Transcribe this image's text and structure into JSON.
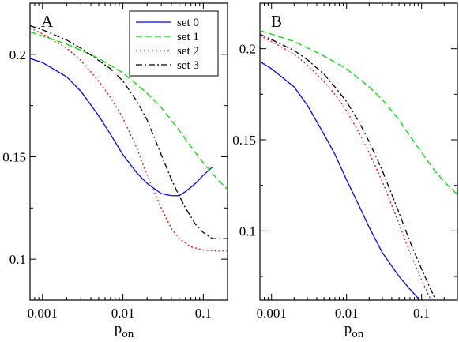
{
  "chart_data": [
    {
      "type": "line",
      "panel_label": "A",
      "xlabel": "p",
      "xlabel_sub": "on",
      "xscale": "log",
      "xlim": [
        0.0007,
        0.2
      ],
      "ylim": [
        0.08,
        0.225
      ],
      "xticks": [
        0.001,
        0.01,
        0.1
      ],
      "xtick_labels": [
        "0.001",
        "0.01",
        "0.1"
      ],
      "yticks": [
        0.1,
        0.15,
        0.2
      ],
      "ytick_labels": [
        "0.1",
        "0.15",
        "0.2"
      ],
      "legend_position": "top-right",
      "series": [
        {
          "name": "set 0",
          "color": "#0000ff",
          "dash": "solid",
          "x": [
            0.0007,
            0.001,
            0.002,
            0.003,
            0.005,
            0.007,
            0.01,
            0.015,
            0.02,
            0.03,
            0.04,
            0.05,
            0.06,
            0.08,
            0.1,
            0.13
          ],
          "y": [
            0.198,
            0.196,
            0.189,
            0.182,
            0.17,
            0.161,
            0.151,
            0.142,
            0.137,
            0.132,
            0.131,
            0.131,
            0.133,
            0.137,
            0.141,
            0.145
          ]
        },
        {
          "name": "set 1",
          "color": "#00dd00",
          "dash": "dashed",
          "x": [
            0.0007,
            0.001,
            0.002,
            0.003,
            0.005,
            0.01,
            0.02,
            0.03,
            0.05,
            0.07,
            0.1,
            0.15,
            0.2
          ],
          "y": [
            0.211,
            0.209,
            0.205,
            0.202,
            0.198,
            0.191,
            0.181,
            0.174,
            0.163,
            0.155,
            0.147,
            0.139,
            0.134
          ]
        },
        {
          "name": "set 2",
          "color": "#ff0000",
          "dash": "dotted",
          "x": [
            0.0007,
            0.001,
            0.002,
            0.003,
            0.005,
            0.007,
            0.01,
            0.015,
            0.02,
            0.03,
            0.04,
            0.05,
            0.07,
            0.1,
            0.15,
            0.2
          ],
          "y": [
            0.213,
            0.21,
            0.203,
            0.197,
            0.187,
            0.179,
            0.169,
            0.154,
            0.141,
            0.125,
            0.115,
            0.11,
            0.106,
            0.1045,
            0.104,
            0.104
          ]
        },
        {
          "name": "set 3",
          "color": "#000000",
          "dash": "dashdot",
          "x": [
            0.0007,
            0.001,
            0.002,
            0.003,
            0.005,
            0.007,
            0.01,
            0.015,
            0.02,
            0.03,
            0.04,
            0.05,
            0.06,
            0.08,
            0.1,
            0.13,
            0.2
          ],
          "y": [
            0.214,
            0.212,
            0.207,
            0.203,
            0.197,
            0.193,
            0.187,
            0.177,
            0.168,
            0.151,
            0.139,
            0.131,
            0.125,
            0.117,
            0.113,
            0.11,
            0.11
          ]
        }
      ]
    },
    {
      "type": "line",
      "panel_label": "B",
      "xlabel": "p",
      "xlabel_sub": "on",
      "xscale": "log",
      "xlim": [
        0.0007,
        0.3
      ],
      "ylim": [
        0.062,
        0.225
      ],
      "xticks": [
        0.001,
        0.01,
        0.1
      ],
      "xtick_labels": [
        "0.001",
        "0.01",
        "0.1"
      ],
      "yticks": [
        0.1,
        0.15,
        0.2
      ],
      "ytick_labels": [
        "0.1",
        "0.15",
        "0.2"
      ],
      "series": [
        {
          "name": "set 0",
          "color": "#0000ff",
          "dash": "solid",
          "x": [
            0.0007,
            0.001,
            0.002,
            0.003,
            0.005,
            0.007,
            0.01,
            0.015,
            0.02,
            0.03,
            0.05,
            0.07,
            0.09
          ],
          "y": [
            0.193,
            0.189,
            0.179,
            0.169,
            0.153,
            0.142,
            0.128,
            0.113,
            0.102,
            0.088,
            0.075,
            0.068,
            0.063
          ]
        },
        {
          "name": "set 1",
          "color": "#00dd00",
          "dash": "dashed",
          "x": [
            0.0007,
            0.001,
            0.002,
            0.005,
            0.01,
            0.02,
            0.03,
            0.05,
            0.07,
            0.1,
            0.15,
            0.2,
            0.3
          ],
          "y": [
            0.21,
            0.208,
            0.204,
            0.196,
            0.189,
            0.179,
            0.172,
            0.161,
            0.152,
            0.143,
            0.133,
            0.127,
            0.12
          ]
        },
        {
          "name": "set 2",
          "color": "#ff0000",
          "dash": "dotted",
          "x": [
            0.0007,
            0.001,
            0.002,
            0.003,
            0.005,
            0.007,
            0.01,
            0.015,
            0.02,
            0.03,
            0.05,
            0.07,
            0.1,
            0.13
          ],
          "y": [
            0.207,
            0.204,
            0.197,
            0.191,
            0.182,
            0.175,
            0.166,
            0.153,
            0.143,
            0.127,
            0.104,
            0.088,
            0.073,
            0.063
          ]
        },
        {
          "name": "set 3",
          "color": "#000000",
          "dash": "dashdot",
          "x": [
            0.0007,
            0.001,
            0.002,
            0.003,
            0.005,
            0.007,
            0.01,
            0.015,
            0.02,
            0.03,
            0.05,
            0.07,
            0.1,
            0.15
          ],
          "y": [
            0.208,
            0.205,
            0.199,
            0.194,
            0.186,
            0.179,
            0.171,
            0.159,
            0.149,
            0.133,
            0.11,
            0.094,
            0.079,
            0.063
          ]
        }
      ]
    }
  ]
}
